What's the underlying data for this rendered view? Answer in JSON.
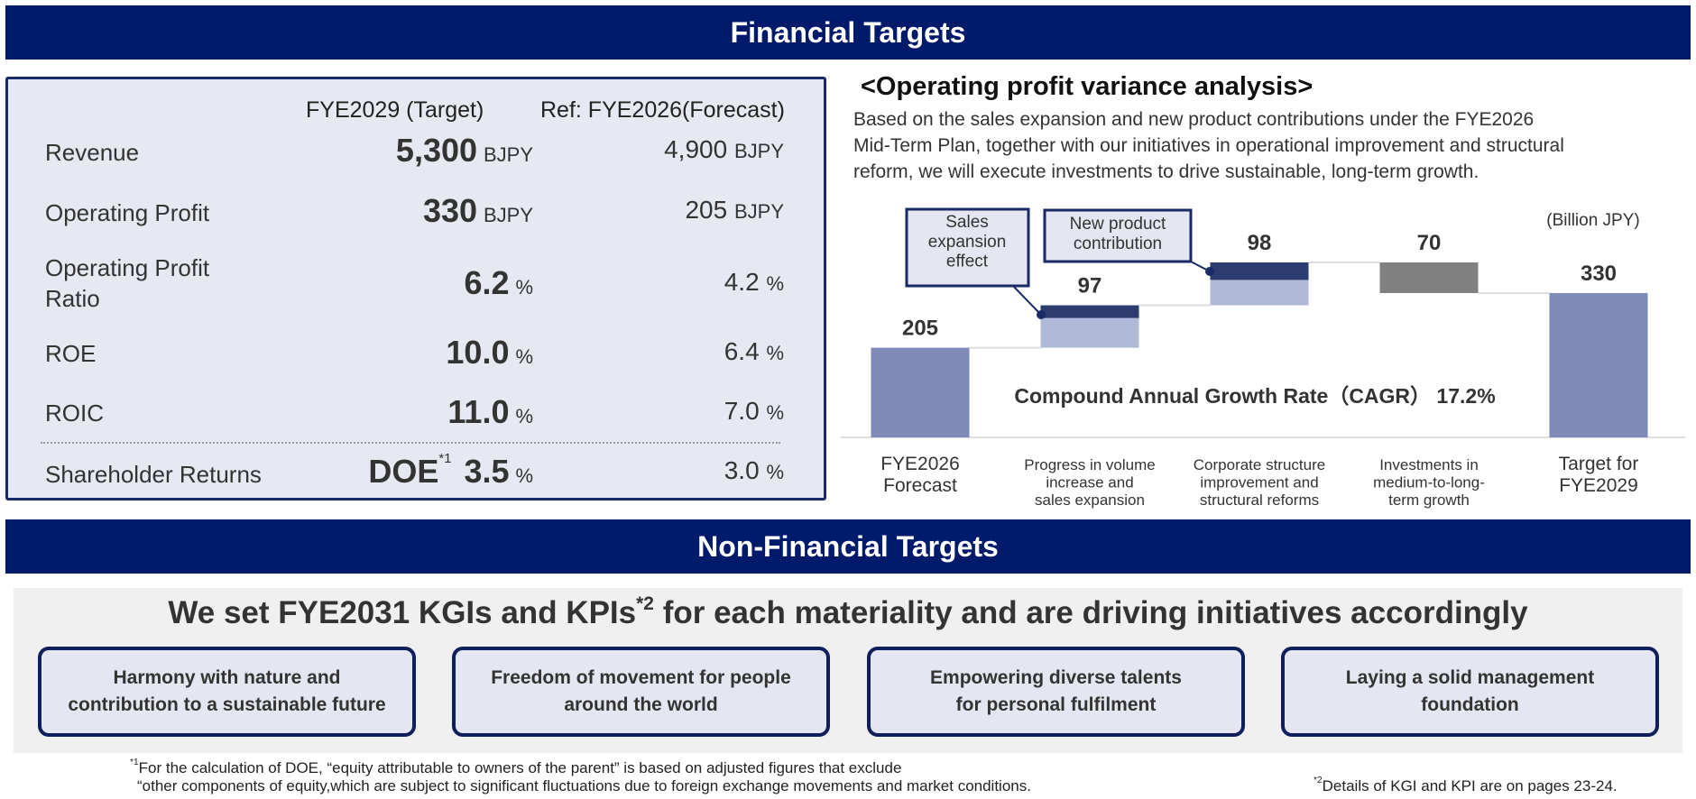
{
  "financial_banner": "Financial Targets",
  "financial_table": {
    "col_target": "FYE2029 (Target)",
    "col_ref": "Ref: FYE2026(Forecast)",
    "rows": [
      {
        "label": "Revenue",
        "target": "5,300",
        "target_unit": "BJPY",
        "ref": "4,900",
        "ref_unit": "BJPY"
      },
      {
        "label": "Operating Profit",
        "target": "330",
        "target_unit": "BJPY",
        "ref": "205",
        "ref_unit": "BJPY"
      },
      {
        "label": "Operating Profit Ratio",
        "target": "6.2",
        "target_unit": "%",
        "ref": "4.2",
        "ref_unit": "%"
      },
      {
        "label": "ROE",
        "target": "10.0",
        "target_unit": "%",
        "ref": "6.4",
        "ref_unit": "%"
      },
      {
        "label": "ROIC",
        "target": "11.0",
        "target_unit": "%",
        "ref": "7.0",
        "ref_unit": "%"
      },
      {
        "label": "Shareholder Returns",
        "prefix": "DOE",
        "prefix_note": "*1",
        "target": "3.5",
        "target_unit": "%",
        "ref": "3.0",
        "ref_unit": "%"
      }
    ]
  },
  "variance": {
    "title": "<Operating profit variance analysis>",
    "description_lines": [
      "Based on the sales expansion and new product contributions under the FYE2026",
      "Mid-Term Plan, together with our initiatives in operational improvement and structural",
      "reform, we will execute investments to drive sustainable, long-term growth."
    ]
  },
  "chart_data": {
    "type": "waterfall",
    "unit_label": "(Billion JPY)",
    "categories": [
      "FYE2026\nForecast",
      "Progress in volume\nincrease and\nsales expansion",
      "Corporate structure\nimprovement and\nstructural reforms",
      "Investments in\nmedium-to-long-\nterm growth",
      "Target for\nFYE2029"
    ],
    "values": [
      205,
      97,
      98,
      -70,
      330
    ],
    "value_labels": [
      "205",
      "97",
      "98",
      "70",
      "330"
    ],
    "kinds": [
      "total",
      "increase",
      "increase",
      "decrease",
      "total"
    ],
    "segments_dark_estimate": [
      0,
      29,
      40,
      0,
      0
    ],
    "callouts": [
      "Sales\nexpansion\neffect",
      "New product\ncontribution"
    ],
    "annotation": "Compound Annual Growth Rate（CAGR） 17.2%",
    "colors": {
      "total": "#7f8bb8",
      "dark": "#2c3b70",
      "light": "#b1b9d8",
      "decrease": "#808080"
    }
  },
  "nonfinancial_banner": "Non-Financial Targets",
  "nonfinancial": {
    "heading": "We set FYE2031 KGIs and KPIs",
    "heading_note": "*2",
    "heading_tail": " for each materiality and are driving initiatives accordingly",
    "materialities": [
      "Harmony with nature and\ncontribution to a sustainable future",
      "Freedom of movement for people\naround the world",
      "Empowering diverse talents\nfor personal fulfilment",
      "Laying a solid management\nfoundation"
    ]
  },
  "footnotes": {
    "note1_mark": "*1",
    "note1_line1": "For the calculation of DOE, “equity attributable to owners of the parent” is based on adjusted figures that exclude",
    "note1_line2": "“other components of equity,which are subject to significant fluctuations due to foreign exchange movements and market conditions.",
    "note2_mark": "*2",
    "note2": "Details of KGI and KPI are on pages 23-24."
  }
}
